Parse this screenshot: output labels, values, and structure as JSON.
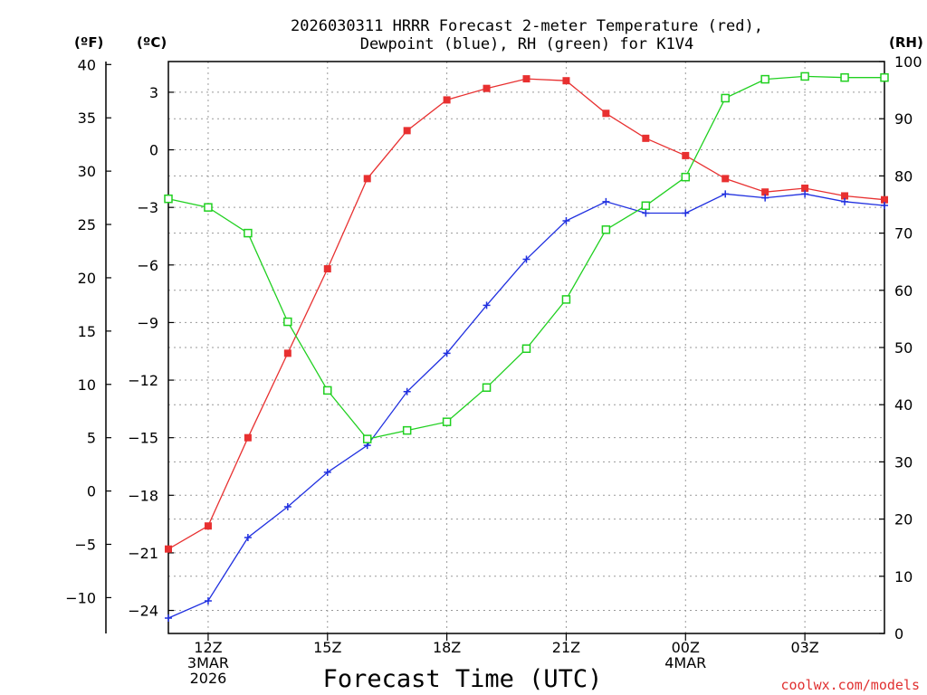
{
  "chart_data": {
    "type": "line",
    "title_line1": "2026030311 HRRR Forecast 2-meter Temperature (red),",
    "title_line2": "Dewpoint (blue), RH (green) for K1V4",
    "left_outer_unit": "(ºF)",
    "left_inner_unit": "(ºC)",
    "right_unit": "(RH)",
    "xlabel": "Forecast Time (UTC)",
    "credit": "coolwx.com/models",
    "x_hours": [
      11,
      12,
      13,
      14,
      15,
      16,
      17,
      18,
      19,
      20,
      21,
      22,
      23,
      24,
      25,
      26,
      27,
      28,
      29
    ],
    "xlim": [
      11,
      29
    ],
    "x_ticks": [
      {
        "hour": 12,
        "lines": [
          "12Z",
          "3MAR",
          "2026"
        ]
      },
      {
        "hour": 15,
        "lines": [
          "15Z"
        ]
      },
      {
        "hour": 18,
        "lines": [
          "18Z"
        ]
      },
      {
        "hour": 21,
        "lines": [
          "21Z"
        ]
      },
      {
        "hour": 24,
        "lines": [
          "00Z",
          "4MAR"
        ]
      },
      {
        "hour": 27,
        "lines": [
          "03Z"
        ]
      }
    ],
    "celsius_axis": {
      "ylim": [
        -25.2,
        4.6
      ],
      "ticks": [
        3,
        0,
        -3,
        -6,
        -9,
        -12,
        -15,
        -18,
        -21,
        -24
      ],
      "tick_labels": [
        "3",
        "0",
        "−3",
        "−6",
        "−9",
        "−12",
        "−15",
        "−18",
        "−21",
        "−24"
      ]
    },
    "fahrenheit_axis": {
      "ylim": [
        -13.36,
        40.28
      ],
      "ticks": [
        40,
        35,
        30,
        25,
        20,
        15,
        10,
        5,
        0,
        -5,
        -10
      ],
      "tick_labels": [
        "40",
        "35",
        "30",
        "25",
        "20",
        "15",
        "10",
        "5",
        "0",
        "−5",
        "−10"
      ]
    },
    "rh_axis": {
      "ylim": [
        0,
        100
      ],
      "ticks": [
        100,
        90,
        80,
        70,
        60,
        50,
        40,
        30,
        20,
        10,
        0
      ],
      "tick_labels": [
        "100",
        "90",
        "80",
        "70",
        "60",
        "50",
        "40",
        "30",
        "20",
        "10",
        "0"
      ]
    },
    "series": [
      {
        "name": "Temperature",
        "unit": "C",
        "axis": "celsius",
        "color": "#e83030",
        "marker": "filled-square",
        "values": [
          -20.8,
          -19.6,
          -15.0,
          -10.6,
          -6.2,
          -1.5,
          1.0,
          2.6,
          3.2,
          3.7,
          3.6,
          1.9,
          0.6,
          -0.3,
          -1.5,
          -2.2,
          -2.0,
          -2.4,
          -2.6
        ]
      },
      {
        "name": "Dewpoint",
        "unit": "C",
        "axis": "celsius",
        "color": "#2030e0",
        "marker": "plus",
        "values": [
          -24.4,
          -23.5,
          -20.2,
          -18.6,
          -16.8,
          -15.4,
          -12.6,
          -10.6,
          -8.1,
          -5.7,
          -3.7,
          -2.7,
          -3.3,
          -3.3,
          -2.3,
          -2.5,
          -2.3,
          -2.7,
          -2.9
        ]
      },
      {
        "name": "RH",
        "unit": "%",
        "axis": "rh",
        "color": "#20d020",
        "marker": "open-square",
        "values": [
          76.0,
          74.5,
          70.0,
          54.5,
          42.5,
          34.0,
          35.5,
          37.0,
          43.0,
          49.8,
          58.4,
          70.6,
          74.8,
          79.8,
          93.6,
          96.9,
          97.4,
          97.2,
          97.2
        ]
      }
    ]
  }
}
